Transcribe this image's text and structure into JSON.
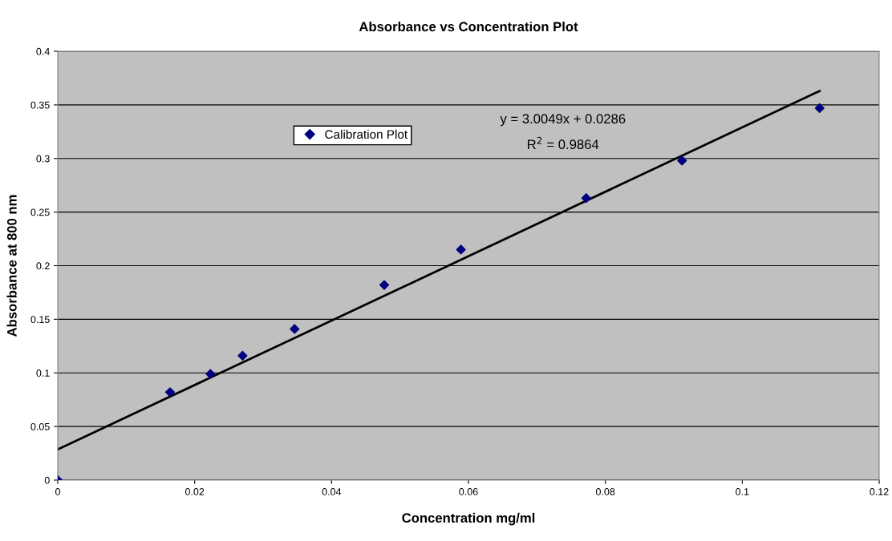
{
  "chart_data": {
    "type": "scatter",
    "title": "Absorbance vs Concentration Plot",
    "xlabel": "Concentration mg/ml",
    "ylabel": "Absorbance at 800 nm",
    "series": [
      {
        "name": "Calibration Plot",
        "color": "#000080",
        "marker": "diamond",
        "x": [
          0,
          0.0164,
          0.0223,
          0.027,
          0.0346,
          0.0477,
          0.0589,
          0.0772,
          0.0912,
          0.1113
        ],
        "values": [
          0,
          0.082,
          0.099,
          0.116,
          0.141,
          0.182,
          0.215,
          0.263,
          0.298,
          0.347
        ]
      },
      {
        "type": "line",
        "color": "#000000",
        "marker": "none",
        "line_style": "solid",
        "x": [
          0,
          0.1113
        ],
        "values": [
          0.0286,
          0.363
        ]
      }
    ],
    "annotations": [
      "y = 3.0049x + 0.0286",
      "R$^{2}$ = 0.9864"
    ],
    "xlim": [
      0,
      0.12
    ],
    "xticks": [
      0,
      0.02,
      0.04,
      0.06,
      0.08,
      0.1,
      0.12
    ],
    "ylim": [
      0,
      0.4
    ],
    "yticks": [
      0,
      0.05,
      0.1,
      0.15,
      0.2,
      0.25,
      0.3,
      0.35,
      0.4
    ],
    "grid": "y",
    "legend": "top left"
  }
}
